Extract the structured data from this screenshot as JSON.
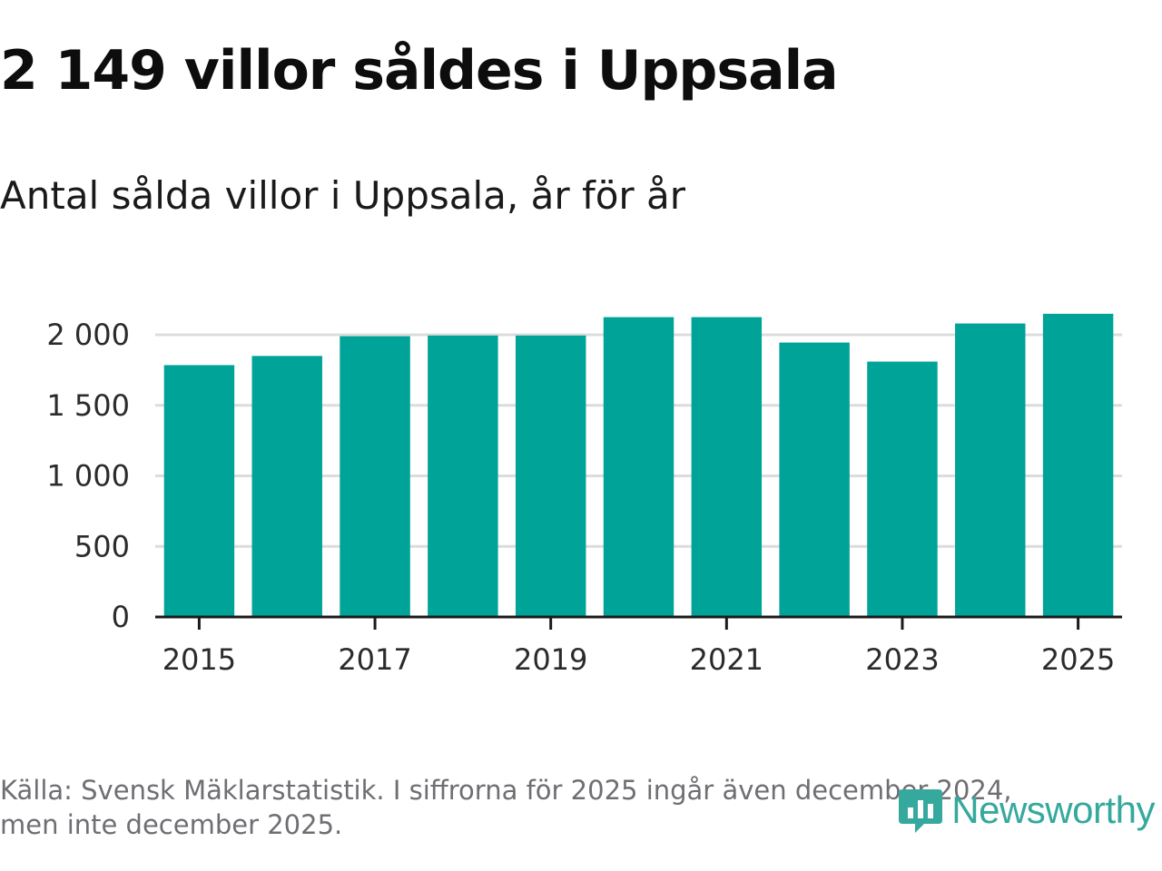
{
  "title": "2 149 villor såldes i Uppsala",
  "subtitle": "Antal sålda villor i Uppsala, år för år",
  "footer": {
    "source_line1": "Källa: Svensk Mäklarstatistik. I siffrorna för 2025 ingår även december 2024,",
    "source_line2": "men inte december 2025."
  },
  "brand": {
    "name": "Newsworthy",
    "icon": "newsworthy-logo-icon",
    "color": "#35a99d"
  },
  "colors": {
    "bar": "#00a398",
    "grid": "#dcdcdc",
    "axis": "#1a1a1a"
  },
  "chart_data": {
    "type": "bar",
    "title": "Antal sålda villor i Uppsala, år för år",
    "xlabel": "",
    "ylabel": "",
    "categories": [
      "2015",
      "2016",
      "2017",
      "2018",
      "2019",
      "2020",
      "2021",
      "2022",
      "2023",
      "2024",
      "2025"
    ],
    "values": [
      1785,
      1850,
      1990,
      1995,
      1995,
      2125,
      2125,
      1945,
      1810,
      2080,
      2149
    ],
    "x_tick_labels": [
      "2015",
      "2017",
      "2019",
      "2021",
      "2023",
      "2025"
    ],
    "y_ticks": [
      0,
      500,
      1000,
      1500,
      2000
    ],
    "y_tick_labels": [
      "0",
      "500",
      "1 000",
      "1 500",
      "2 000"
    ],
    "ylim": [
      0,
      2250
    ],
    "grid": true,
    "legend": "none"
  }
}
